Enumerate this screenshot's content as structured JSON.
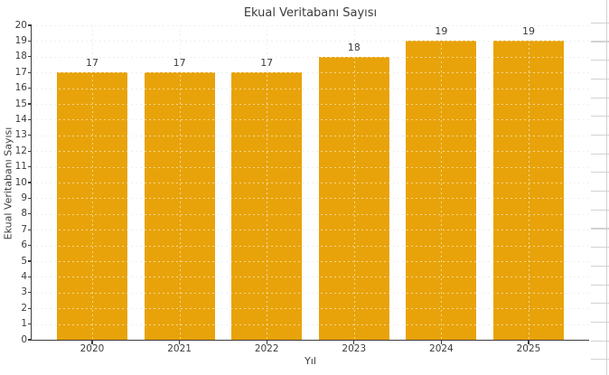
{
  "chart_data": {
    "type": "bar",
    "title": "Ekual Veritabanı Sayısı",
    "xlabel": "Yıl",
    "ylabel": "Ekual Veritabanı Sayısı",
    "categories": [
      "2020",
      "2021",
      "2022",
      "2023",
      "2024",
      "2025"
    ],
    "values": [
      17,
      17,
      17,
      18,
      19,
      19
    ],
    "bar_value_labels": [
      "17",
      "17",
      "17",
      "18",
      "19",
      "19"
    ],
    "ylim": [
      0,
      20
    ],
    "ytick_step": 1,
    "yticks": [
      0,
      1,
      2,
      3,
      4,
      5,
      6,
      7,
      8,
      9,
      10,
      11,
      12,
      13,
      14,
      15,
      16,
      17,
      18,
      19,
      20
    ],
    "grid": true,
    "grid_style": "dashed",
    "legend": "none",
    "bar_color": "#E8A30A"
  },
  "colors": {
    "background": "#ffffff",
    "bar": "#E8A30A",
    "axis_spine": "#3d3d3d",
    "gridline": "#dcdcdc",
    "text": "#3c3c3c",
    "spreadsheet_gridline": "#d2d2d2"
  }
}
